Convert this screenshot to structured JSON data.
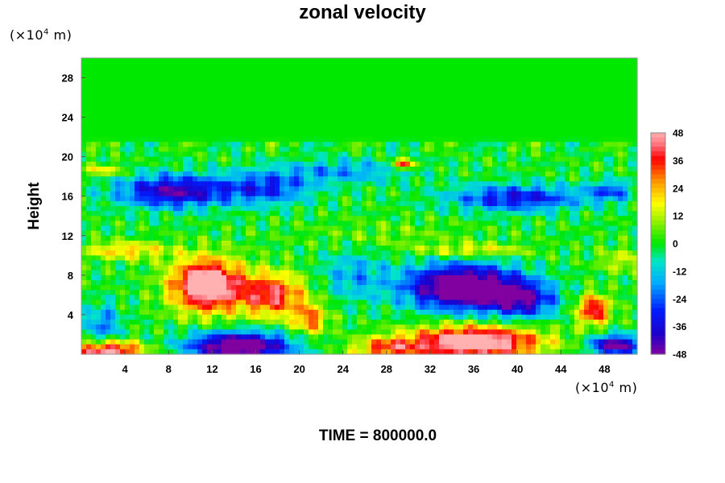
{
  "chart_data": {
    "type": "heatmap",
    "title": "zonal velocity",
    "ylabel": "Height",
    "unit_text": "(×10",
    "unit_exp": "4",
    "unit_tail": " m)",
    "footer": "TIME = 800000.0",
    "x_range": [
      0,
      51
    ],
    "y_range": [
      0,
      30
    ],
    "x_ticks": [
      4,
      8,
      12,
      16,
      20,
      24,
      28,
      32,
      36,
      40,
      44,
      48
    ],
    "y_ticks": [
      4,
      8,
      12,
      16,
      20,
      24,
      28
    ],
    "colorbar_ticks": [
      48,
      36,
      24,
      12,
      0,
      -12,
      -24,
      -36,
      -48
    ],
    "value_range": [
      -48,
      48
    ],
    "colors": {
      "neg_strong": "#8000a0",
      "neg": "#0000c0",
      "neg_light": "#00c0ff",
      "zero": "#00e800",
      "pos_light": "#ffff00",
      "pos": "#ff0000",
      "pos_strong": "#ffb0b0"
    },
    "features": [
      {
        "x": 11.5,
        "y": 7.0,
        "sx": 3.2,
        "sy": 2.6,
        "amp": 62
      },
      {
        "x": 17.5,
        "y": 6.0,
        "sx": 3.0,
        "sy": 2.2,
        "amp": 40
      },
      {
        "x": 21.0,
        "y": 3.5,
        "sx": 1.6,
        "sy": 1.6,
        "amp": 28
      },
      {
        "x": 35.0,
        "y": 6.8,
        "sx": 5.0,
        "sy": 2.2,
        "amp": -66
      },
      {
        "x": 40.5,
        "y": 5.5,
        "sx": 3.0,
        "sy": 1.8,
        "amp": -38
      },
      {
        "x": 14.5,
        "y": 0.8,
        "sx": 4.5,
        "sy": 1.4,
        "amp": -62
      },
      {
        "x": 36.0,
        "y": 1.2,
        "sx": 6.0,
        "sy": 1.6,
        "amp": 60
      },
      {
        "x": 28.0,
        "y": 0.6,
        "sx": 3.0,
        "sy": 1.0,
        "amp": 30
      },
      {
        "x": 2.5,
        "y": 0.3,
        "sx": 3.0,
        "sy": 1.0,
        "amp": 52
      },
      {
        "x": 47.0,
        "y": 4.5,
        "sx": 1.5,
        "sy": 1.5,
        "amp": 42
      },
      {
        "x": 49.0,
        "y": 0.9,
        "sx": 2.2,
        "sy": 1.0,
        "amp": -52
      },
      {
        "x": 49.5,
        "y": 9.5,
        "sx": 2.0,
        "sy": 1.2,
        "amp": 14
      },
      {
        "x": 8.5,
        "y": 16.5,
        "sx": 5.0,
        "sy": 1.6,
        "amp": -44
      },
      {
        "x": 17.0,
        "y": 16.8,
        "sx": 4.0,
        "sy": 1.6,
        "amp": -28
      },
      {
        "x": 40.0,
        "y": 15.8,
        "sx": 6.0,
        "sy": 1.3,
        "amp": -34
      },
      {
        "x": 48.5,
        "y": 16.5,
        "sx": 2.0,
        "sy": 1.0,
        "amp": -24
      },
      {
        "x": 29.5,
        "y": 19.2,
        "sx": 1.0,
        "sy": 0.5,
        "amp": 40
      },
      {
        "x": 2.0,
        "y": 18.6,
        "sx": 2.0,
        "sy": 0.6,
        "amp": 18
      },
      {
        "x": 4.0,
        "y": 10.5,
        "sx": 4.0,
        "sy": 0.9,
        "amp": 22
      },
      {
        "x": 36.0,
        "y": 10.5,
        "sx": 5.0,
        "sy": 0.7,
        "amp": 18
      },
      {
        "x": 25.0,
        "y": 8.0,
        "sx": 3.0,
        "sy": 2.5,
        "amp": -16
      },
      {
        "x": 24.0,
        "y": 18.5,
        "sx": 6.0,
        "sy": 1.2,
        "amp": -18
      },
      {
        "x": 2.0,
        "y": 3.0,
        "sx": 1.5,
        "sy": 2.0,
        "amp": -22
      },
      {
        "x": 28.0,
        "y": 12.0,
        "sx": 8.0,
        "sy": 1.5,
        "amp": 6
      }
    ]
  }
}
